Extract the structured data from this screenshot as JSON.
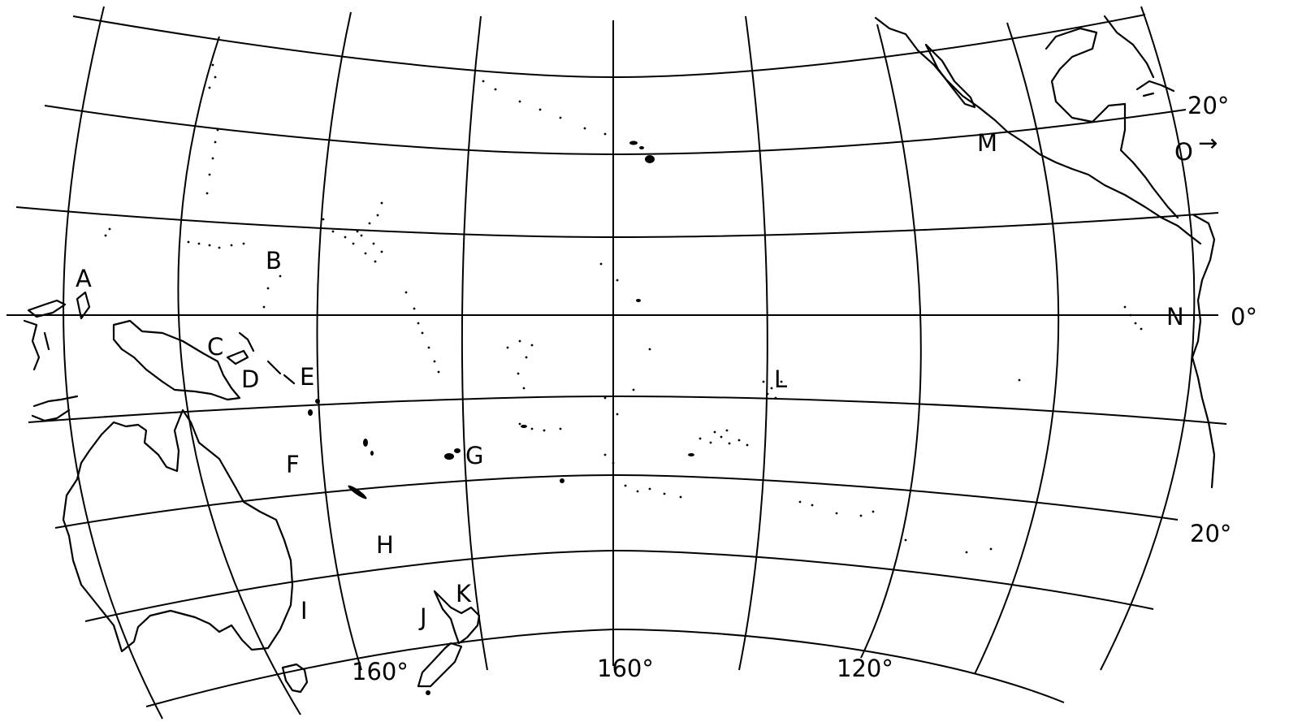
{
  "map": {
    "point_labels": [
      {
        "id": "A",
        "text": "A"
      },
      {
        "id": "B",
        "text": "B"
      },
      {
        "id": "C",
        "text": "C"
      },
      {
        "id": "D",
        "text": "D"
      },
      {
        "id": "E",
        "text": "E"
      },
      {
        "id": "F",
        "text": "F"
      },
      {
        "id": "G",
        "text": "G"
      },
      {
        "id": "H",
        "text": "H"
      },
      {
        "id": "I",
        "text": "I"
      },
      {
        "id": "J",
        "text": "J"
      },
      {
        "id": "K",
        "text": "K"
      },
      {
        "id": "L",
        "text": "L"
      },
      {
        "id": "M",
        "text": "M"
      },
      {
        "id": "N",
        "text": "N"
      },
      {
        "id": "O",
        "text": "O"
      }
    ],
    "o_arrow": "→",
    "longitude_labels": [
      "160°",
      "160°",
      "120°"
    ],
    "latitude_labels": [
      "20°",
      "0°",
      "20°"
    ],
    "colors": {
      "ink": "#000000",
      "background": "#ffffff"
    }
  }
}
